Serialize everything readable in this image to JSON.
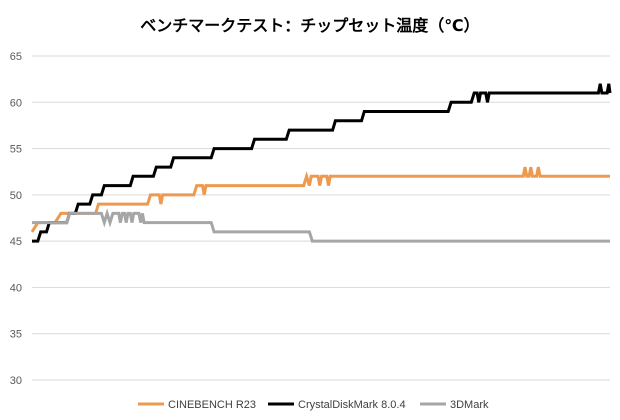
{
  "chart_data": {
    "type": "line",
    "title": "ベンチマークテスト：チップセット温度（℃）",
    "xlabel": "",
    "ylabel": "",
    "ylim": [
      30,
      65
    ],
    "yticks": [
      30,
      35,
      40,
      45,
      50,
      55,
      60,
      65
    ],
    "grid": true,
    "legend_position": "bottom",
    "x_domain": [
      0,
      100
    ],
    "series": [
      {
        "name": "CINEBENCH R23",
        "color": "#ED9A50",
        "points": [
          [
            0,
            46
          ],
          [
            1,
            47
          ],
          [
            4,
            47
          ],
          [
            5,
            48
          ],
          [
            11,
            48
          ],
          [
            11.5,
            49
          ],
          [
            20,
            49
          ],
          [
            20.5,
            50
          ],
          [
            22,
            50
          ],
          [
            22.3,
            49
          ],
          [
            22.6,
            50
          ],
          [
            28,
            50
          ],
          [
            28.5,
            51
          ],
          [
            29.5,
            51
          ],
          [
            29.8,
            50
          ],
          [
            30.1,
            51
          ],
          [
            47,
            51
          ],
          [
            47.5,
            52
          ],
          [
            48,
            51
          ],
          [
            48.3,
            52
          ],
          [
            49.5,
            52
          ],
          [
            49.8,
            51
          ],
          [
            50.1,
            52
          ],
          [
            51,
            52
          ],
          [
            51.3,
            51
          ],
          [
            51.6,
            52
          ],
          [
            85,
            52
          ],
          [
            85.3,
            53
          ],
          [
            85.6,
            52
          ],
          [
            86,
            52
          ],
          [
            86.3,
            53
          ],
          [
            86.6,
            52
          ],
          [
            87.3,
            52
          ],
          [
            87.6,
            53
          ],
          [
            87.9,
            52
          ],
          [
            100,
            52
          ]
        ]
      },
      {
        "name": "CrystalDiskMark 8.0.4",
        "color": "#000000",
        "points": [
          [
            0,
            45
          ],
          [
            1,
            45
          ],
          [
            1.5,
            46
          ],
          [
            2.5,
            46
          ],
          [
            3,
            47
          ],
          [
            6,
            47
          ],
          [
            6.5,
            48
          ],
          [
            7.5,
            48
          ],
          [
            8,
            49
          ],
          [
            10,
            49
          ],
          [
            10.5,
            50
          ],
          [
            12,
            50
          ],
          [
            12.5,
            51
          ],
          [
            17,
            51
          ],
          [
            17.5,
            52
          ],
          [
            21,
            52
          ],
          [
            21.5,
            53
          ],
          [
            24,
            53
          ],
          [
            24.5,
            54
          ],
          [
            31,
            54
          ],
          [
            31.5,
            55
          ],
          [
            38,
            55
          ],
          [
            38.5,
            56
          ],
          [
            44,
            56
          ],
          [
            44.5,
            57
          ],
          [
            52,
            57
          ],
          [
            52.5,
            58
          ],
          [
            57,
            58
          ],
          [
            57.5,
            59
          ],
          [
            72,
            59
          ],
          [
            72.5,
            60
          ],
          [
            76,
            60
          ],
          [
            76.5,
            61
          ],
          [
            77,
            61
          ],
          [
            77.3,
            60
          ],
          [
            77.6,
            61
          ],
          [
            78.5,
            61
          ],
          [
            78.8,
            60
          ],
          [
            79.1,
            61
          ],
          [
            98,
            61
          ],
          [
            98.3,
            62
          ],
          [
            98.6,
            61
          ],
          [
            99.5,
            61
          ],
          [
            99.8,
            62
          ],
          [
            100,
            61
          ]
        ]
      },
      {
        "name": "3DMark",
        "color": "#A6A6A6",
        "points": [
          [
            0,
            47
          ],
          [
            6,
            47
          ],
          [
            6.5,
            48
          ],
          [
            12,
            48
          ],
          [
            12.5,
            47
          ],
          [
            13,
            48
          ],
          [
            13.5,
            47
          ],
          [
            14,
            48
          ],
          [
            15,
            48
          ],
          [
            15.3,
            47
          ],
          [
            15.6,
            48
          ],
          [
            16,
            48
          ],
          [
            16.3,
            47
          ],
          [
            16.6,
            48
          ],
          [
            17,
            48
          ],
          [
            17.3,
            47
          ],
          [
            17.6,
            48
          ],
          [
            18.5,
            48
          ],
          [
            18.8,
            47
          ],
          [
            19.1,
            48
          ],
          [
            19.4,
            47
          ],
          [
            31,
            47
          ],
          [
            31.5,
            46
          ],
          [
            48,
            46
          ],
          [
            48.5,
            45
          ],
          [
            100,
            45
          ]
        ]
      }
    ]
  }
}
